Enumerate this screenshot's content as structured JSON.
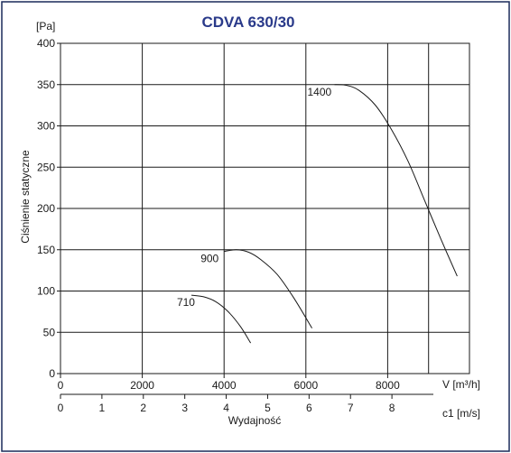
{
  "chart_data": {
    "type": "line",
    "title": "CDVA 630/30",
    "ylabel": "Ciśnienie statyczne",
    "yunit": "[Pa]",
    "xlabel_primary": "V [m³/h]",
    "xlabel_secondary": "c1 [m/s]",
    "xlabel_bottom": "Wydajność",
    "ylim": [
      0,
      400
    ],
    "yticks": [
      "0",
      "50",
      "100",
      "150",
      "200",
      "250",
      "300",
      "350",
      "400"
    ],
    "xlim": [
      0,
      10000
    ],
    "xticks": [
      "0",
      "2000",
      "4000",
      "6000",
      "8000"
    ],
    "xticks_values": [
      0,
      2000,
      4000,
      6000,
      8000
    ],
    "c1_ticks": [
      "0",
      "1",
      "2",
      "3",
      "4",
      "5",
      "6",
      "7",
      "8"
    ],
    "c1_per_m3h": 0.000891,
    "grid": true,
    "series": [
      {
        "name": "710",
        "x": [
          3200,
          3500,
          3800,
          4100,
          4400,
          4650
        ],
        "y": [
          95,
          93,
          87,
          75,
          57,
          37
        ]
      },
      {
        "name": "900",
        "x": [
          4000,
          4300,
          4600,
          4900,
          5300,
          5700,
          6150
        ],
        "y": [
          148,
          150,
          147,
          138,
          120,
          92,
          55
        ]
      },
      {
        "name": "1400",
        "x": [
          6700,
          7000,
          7300,
          7700,
          8100,
          8500,
          8900,
          9300,
          9700
        ],
        "y": [
          350,
          349,
          343,
          325,
          295,
          257,
          210,
          163,
          118
        ]
      }
    ]
  }
}
